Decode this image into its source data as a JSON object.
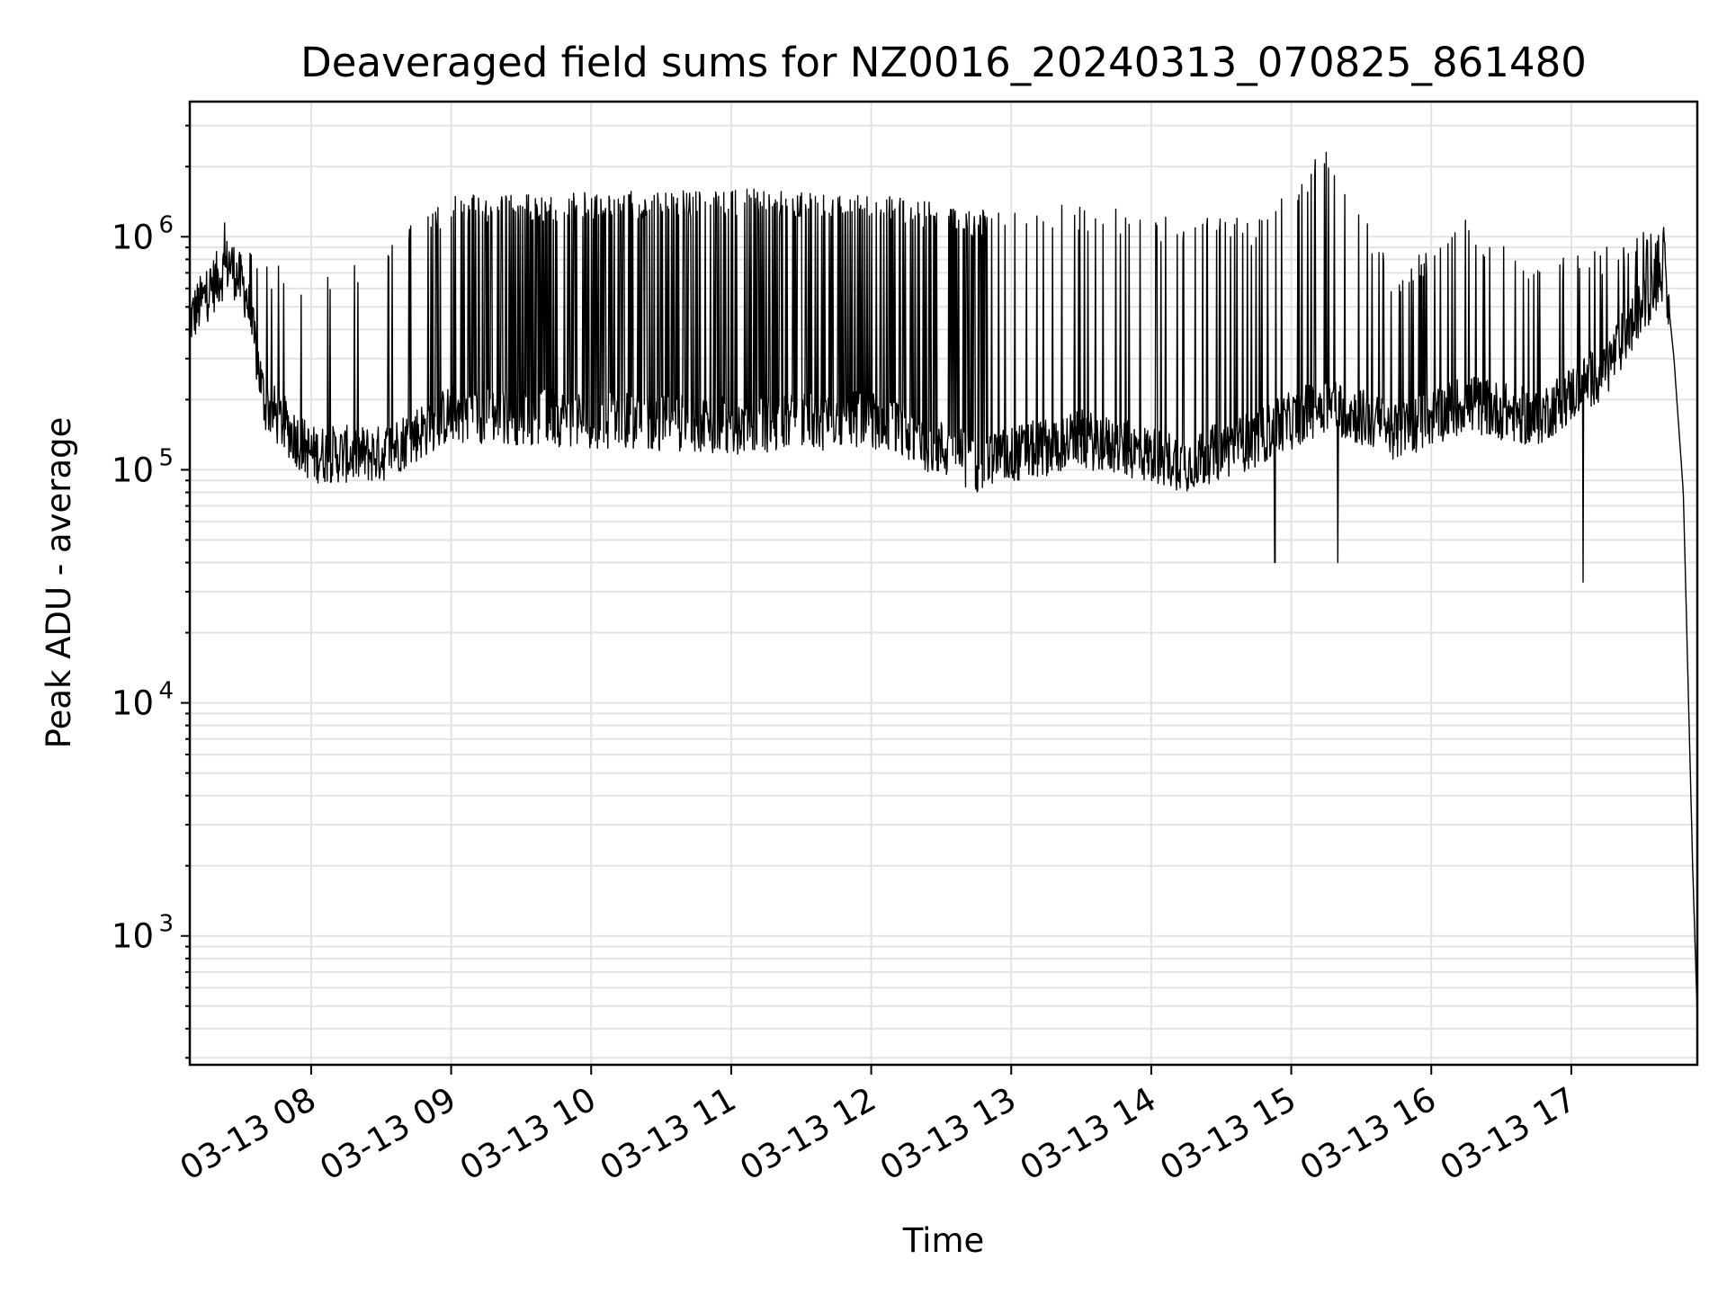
{
  "chart_data": {
    "type": "line",
    "title": "Deaveraged field sums for NZ0016_20240313_070825_861480",
    "xlabel": "Time",
    "ylabel": "Peak ADU - average",
    "yscale": "log",
    "grid": true,
    "grid_minor": true,
    "line_color": "#000000",
    "xlim": [
      "03-13 07:08",
      "03-13 17:54"
    ],
    "ylim": [
      280,
      3800000
    ],
    "x_ticks": [
      "03-13 08",
      "03-13 09",
      "03-13 10",
      "03-13 11",
      "03-13 12",
      "03-13 13",
      "03-13 14",
      "03-13 15",
      "03-13 16",
      "03-13 17"
    ],
    "y_ticks": [
      {
        "base": "10",
        "exp": "3"
      },
      {
        "base": "10",
        "exp": "4"
      },
      {
        "base": "10",
        "exp": "5"
      },
      {
        "base": "10",
        "exp": "6"
      }
    ],
    "series_profile": [
      {
        "time": "03-13 07:08",
        "baseline": 450000,
        "peak": 700000
      },
      {
        "time": "03-13 07:15",
        "baseline": 580000,
        "peak": 750000
      },
      {
        "time": "03-13 07:25",
        "baseline": 800000,
        "peak": 1400000
      },
      {
        "time": "03-13 07:32",
        "baseline": 600000,
        "peak": 1000000
      },
      {
        "time": "03-13 07:40",
        "baseline": 200000,
        "peak": 800000
      },
      {
        "time": "03-13 08:00",
        "baseline": 120000,
        "peak": 700000
      },
      {
        "time": "03-13 08:30",
        "baseline": 120000,
        "peak": 900000
      },
      {
        "time": "03-13 09:00",
        "baseline": 180000,
        "peak": 1500000
      },
      {
        "time": "03-13 10:00",
        "baseline": 170000,
        "peak": 1550000
      },
      {
        "time": "03-13 11:00",
        "baseline": 160000,
        "peak": 1600000
      },
      {
        "time": "03-13 12:00",
        "baseline": 170000,
        "peak": 1600000
      },
      {
        "time": "03-13 12:45",
        "baseline": 110000,
        "peak": 1300000
      },
      {
        "time": "03-13 13:30",
        "baseline": 140000,
        "peak": 1400000
      },
      {
        "time": "03-13 14:15",
        "baseline": 110000,
        "peak": 1200000
      },
      {
        "time": "03-13 14:45",
        "baseline": 140000,
        "peak": 1200000
      },
      {
        "time": "03-13 15:15",
        "baseline": 200000,
        "peak": 2400000
      },
      {
        "time": "03-13 15:45",
        "baseline": 150000,
        "peak": 700000
      },
      {
        "time": "03-13 16:15",
        "baseline": 200000,
        "peak": 1200000
      },
      {
        "time": "03-13 16:45",
        "baseline": 170000,
        "peak": 800000
      },
      {
        "time": "03-13 17:15",
        "baseline": 280000,
        "peak": 900000
      },
      {
        "time": "03-13 17:40",
        "baseline": 750000,
        "peak": 1200000
      },
      {
        "time": "03-13 17:44",
        "baseline": 300000,
        "peak": 400000
      },
      {
        "time": "03-13 17:48",
        "baseline": 80000,
        "peak": 120000
      },
      {
        "time": "03-13 17:52",
        "baseline": 2000,
        "peak": 3000
      },
      {
        "time": "03-13 17:54",
        "baseline": 450,
        "peak": 1000
      }
    ],
    "notable_dips": [
      {
        "time": "03-13 14:53",
        "value": 40000
      },
      {
        "time": "03-13 15:20",
        "value": 40000
      },
      {
        "time": "03-13 17:05",
        "value": 33000
      }
    ]
  }
}
